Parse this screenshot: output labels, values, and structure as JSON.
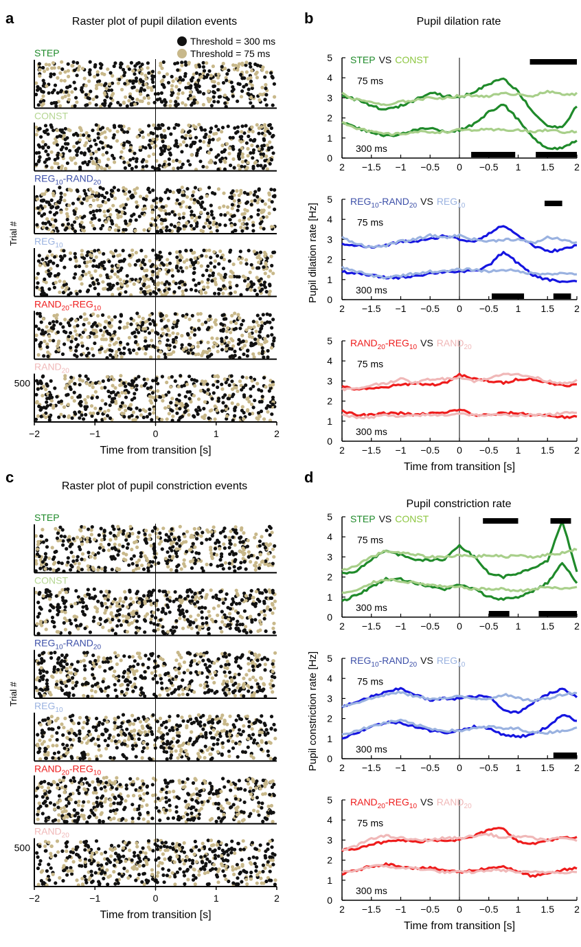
{
  "colors": {
    "step": "#1f8a2a",
    "const": "#a8cf8a",
    "const_label": "#b5d692",
    "vs_const": "#8cc63f",
    "reg_rand": "#1515e0",
    "reg_rand_label": "#3c4fa8",
    "reg10": "#9ab2e0",
    "rand_reg": "#ee1c1c",
    "rand20": "#f0b8b8",
    "black_dot": "#111111",
    "tan_dot": "#c8b88a",
    "bar": "#000000"
  },
  "panels": {
    "a": {
      "letter": "a",
      "title": "Raster plot of pupil dilation events"
    },
    "b": {
      "letter": "b",
      "title": "Pupil dilation rate",
      "ylabel": "Pupil dilation rate [Hz]"
    },
    "c": {
      "letter": "c",
      "title": "Raster plot of pupil constriction events"
    },
    "d": {
      "letter": "d",
      "title": "Pupil constriction rate",
      "ylabel": "Pupil constriction rate [Hz]"
    }
  },
  "legend": {
    "black": "Threshold = 300 ms",
    "tan": "Threshold = 75 ms"
  },
  "raster": {
    "ylabel": "Trial #",
    "trial_tick": "500",
    "xlabel": "Time from transition [s]",
    "xticks": [
      "−2",
      "−1",
      "0",
      "1",
      "2"
    ],
    "conditions": [
      {
        "base": "STEP",
        "sub1": "",
        "mid": "",
        "sub2": "",
        "color_key": "step"
      },
      {
        "base": "CONST",
        "sub1": "",
        "mid": "",
        "sub2": "",
        "color_key": "const_label"
      },
      {
        "base": "REG",
        "sub1": "10",
        "mid": "-RAND",
        "sub2": "20",
        "color_key": "reg_rand_label"
      },
      {
        "base": "REG",
        "sub1": "10",
        "mid": "",
        "sub2": "",
        "color_key": "reg10"
      },
      {
        "base": "RAND",
        "sub1": "20",
        "mid": "-REG",
        "sub2": "10",
        "color_key": "rand_reg"
      },
      {
        "base": "RAND",
        "sub1": "20",
        "mid": "",
        "sub2": "",
        "color_key": "rand20"
      }
    ]
  },
  "rate": {
    "xlabel": "Time from transition [s]",
    "xticks": [
      "2",
      "−1.5",
      "−1",
      "−0.5",
      "0",
      "−0.5",
      "1",
      "1.5",
      "2"
    ],
    "yticks": [
      "0",
      "1",
      "2",
      "3",
      "4",
      "5"
    ],
    "label_75": "75 ms",
    "label_300": "300 ms",
    "vs": "VS",
    "comparisons": [
      {
        "a": {
          "base": "STEP",
          "sub1": "",
          "mid": "",
          "sub2": "",
          "color_key": "step"
        },
        "b": {
          "base": "CONST",
          "sub1": "",
          "mid": "",
          "sub2": "",
          "color_key": "vs_const"
        },
        "ca": "step",
        "cb": "const"
      },
      {
        "a": {
          "base": "REG",
          "sub1": "10",
          "mid": "-RAND",
          "sub2": "20",
          "color_key": "reg_rand_label"
        },
        "b": {
          "base": "REG",
          "sub1": "10",
          "mid": "",
          "sub2": "",
          "color_key": "reg10"
        },
        "ca": "reg_rand",
        "cb": "reg10"
      },
      {
        "a": {
          "base": "RAND",
          "sub1": "20",
          "mid": "-REG",
          "sub2": "10",
          "color_key": "rand_reg"
        },
        "b": {
          "base": "RAND",
          "sub1": "20",
          "mid": "",
          "sub2": "",
          "color_key": "rand20"
        },
        "ca": "rand_reg",
        "cb": "rand20"
      }
    ]
  },
  "chart_data": [
    {
      "panel": "b",
      "type": "line",
      "xlim": [
        -2,
        2
      ],
      "ylim": [
        0,
        5
      ],
      "subplots": [
        {
          "x": [
            -2,
            -1.75,
            -1.5,
            -1.25,
            -1,
            -0.75,
            -0.5,
            -0.25,
            0,
            0.25,
            0.5,
            0.75,
            1,
            1.25,
            1.5,
            1.75,
            2
          ],
          "series": [
            {
              "threshold": "75 ms",
              "group": "a",
              "values": [
                3.1,
                2.9,
                2.6,
                2.4,
                2.6,
                2.9,
                3.3,
                3.1,
                3.0,
                3.3,
                3.7,
                4.0,
                3.3,
                2.3,
                1.6,
                1.5,
                2.6
              ]
            },
            {
              "threshold": "75 ms",
              "group": "b",
              "values": [
                3.2,
                2.9,
                2.8,
                2.6,
                2.8,
                2.9,
                3.0,
                3.0,
                3.1,
                3.1,
                3.1,
                3.2,
                3.2,
                3.1,
                3.3,
                3.2,
                3.2
              ]
            },
            {
              "threshold": "300 ms",
              "group": "a",
              "values": [
                1.8,
                1.5,
                1.3,
                1.1,
                1.2,
                1.4,
                1.5,
                1.3,
                1.4,
                1.7,
                2.3,
                2.7,
                1.9,
                1.0,
                0.5,
                0.5,
                0.9
              ]
            },
            {
              "threshold": "300 ms",
              "group": "b",
              "values": [
                1.8,
                1.5,
                1.3,
                1.2,
                1.2,
                1.3,
                1.3,
                1.3,
                1.4,
                1.4,
                1.4,
                1.4,
                1.4,
                1.3,
                1.4,
                1.3,
                1.3
              ]
            }
          ],
          "bars_top": [
            [
              1.2,
              2.0
            ]
          ],
          "bars_bottom": [
            [
              0.2,
              0.95
            ],
            [
              1.3,
              2.0
            ]
          ]
        },
        {
          "x": [
            -2,
            -1.75,
            -1.5,
            -1.25,
            -1,
            -0.75,
            -0.5,
            -0.25,
            0,
            0.25,
            0.5,
            0.75,
            1,
            1.25,
            1.5,
            1.75,
            2
          ],
          "series": [
            {
              "threshold": "75 ms",
              "group": "a",
              "values": [
                2.8,
                2.7,
                2.6,
                2.7,
                2.9,
                2.9,
                3.0,
                3.2,
                3.0,
                2.9,
                3.3,
                3.7,
                3.2,
                2.7,
                2.4,
                2.5,
                2.7
              ]
            },
            {
              "threshold": "75 ms",
              "group": "b",
              "values": [
                3.1,
                2.8,
                2.6,
                2.7,
                2.9,
                3.0,
                3.2,
                3.1,
                3.2,
                3.0,
                2.9,
                3.0,
                3.0,
                2.8,
                3.1,
                3.0,
                2.8
              ]
            },
            {
              "threshold": "300 ms",
              "group": "a",
              "values": [
                1.4,
                1.3,
                1.2,
                1.1,
                1.1,
                1.2,
                1.3,
                1.4,
                1.4,
                1.4,
                1.7,
                2.4,
                1.8,
                1.2,
                1.0,
                0.9,
                0.9
              ]
            },
            {
              "threshold": "300 ms",
              "group": "b",
              "values": [
                1.6,
                1.4,
                1.2,
                1.1,
                1.2,
                1.3,
                1.4,
                1.4,
                1.5,
                1.5,
                1.4,
                1.5,
                1.4,
                1.3,
                1.3,
                1.3,
                1.3
              ]
            }
          ],
          "bars_top": [
            [
              1.45,
              1.75
            ]
          ],
          "bars_bottom": [
            [
              0.55,
              1.1
            ],
            [
              1.6,
              1.9
            ]
          ]
        },
        {
          "x": [
            -2,
            -1.75,
            -1.5,
            -1.25,
            -1,
            -0.75,
            -0.5,
            -0.25,
            0,
            0.25,
            0.5,
            0.75,
            1,
            1.25,
            1.5,
            1.75,
            2
          ],
          "series": [
            {
              "threshold": "75 ms",
              "group": "a",
              "values": [
                2.7,
                2.6,
                2.6,
                2.7,
                2.8,
                2.9,
                2.8,
                2.9,
                3.3,
                3.1,
                3.0,
                2.9,
                3.1,
                3.1,
                2.9,
                2.8,
                2.8
              ]
            },
            {
              "threshold": "75 ms",
              "group": "b",
              "values": [
                2.6,
                2.6,
                2.8,
                2.9,
                3.1,
                2.9,
                3.1,
                3.1,
                3.2,
                3.0,
                3.1,
                3.4,
                3.3,
                3.2,
                3.0,
                2.9,
                3.0
              ]
            },
            {
              "threshold": "300 ms",
              "group": "a",
              "values": [
                1.5,
                1.3,
                1.3,
                1.4,
                1.4,
                1.3,
                1.4,
                1.4,
                1.6,
                1.3,
                1.3,
                1.4,
                1.4,
                1.3,
                1.3,
                1.2,
                1.2
              ]
            },
            {
              "threshold": "300 ms",
              "group": "b",
              "values": [
                1.3,
                1.2,
                1.2,
                1.3,
                1.2,
                1.3,
                1.3,
                1.3,
                1.4,
                1.3,
                1.3,
                1.3,
                1.3,
                1.3,
                1.3,
                1.4,
                1.4
              ]
            }
          ],
          "bars_top": [],
          "bars_bottom": []
        }
      ]
    },
    {
      "panel": "d",
      "type": "line",
      "xlim": [
        -2,
        2
      ],
      "ylim": [
        0,
        5
      ],
      "subplots": [
        {
          "x": [
            -2,
            -1.75,
            -1.5,
            -1.25,
            -1,
            -0.75,
            -0.5,
            -0.25,
            0,
            0.25,
            0.5,
            0.75,
            1,
            1.25,
            1.5,
            1.75,
            2
          ],
          "series": [
            {
              "threshold": "75 ms",
              "group": "a",
              "values": [
                2.2,
                2.3,
                2.9,
                3.3,
                3.1,
                2.9,
                2.8,
                2.9,
                3.6,
                3.0,
                2.2,
                2.0,
                2.2,
                2.4,
                2.8,
                4.8,
                2.2
              ]
            },
            {
              "threshold": "75 ms",
              "group": "b",
              "values": [
                2.3,
                2.6,
                3.0,
                3.3,
                3.2,
                3.1,
                3.0,
                3.0,
                3.1,
                3.0,
                3.1,
                3.0,
                3.1,
                3.0,
                3.1,
                3.2,
                3.4
              ]
            },
            {
              "threshold": "300 ms",
              "group": "a",
              "values": [
                0.8,
                1.1,
                1.5,
                1.9,
                1.9,
                1.7,
                1.5,
                1.4,
                1.6,
                1.4,
                1.0,
                0.9,
                1.0,
                1.3,
                1.7,
                2.7,
                1.7
              ]
            },
            {
              "threshold": "300 ms",
              "group": "b",
              "values": [
                1.2,
                1.3,
                1.7,
                1.9,
                1.8,
                1.7,
                1.6,
                1.5,
                1.5,
                1.4,
                1.4,
                1.4,
                1.3,
                1.4,
                1.5,
                1.4,
                1.5
              ]
            }
          ],
          "bars_top": [
            [
              0.4,
              1.0
            ],
            [
              1.55,
              1.9
            ]
          ],
          "bars_bottom": [
            [
              0.5,
              0.85
            ],
            [
              1.35,
              2.0
            ]
          ]
        },
        {
          "x": [
            -2,
            -1.75,
            -1.5,
            -1.25,
            -1,
            -0.75,
            -0.5,
            -0.25,
            0,
            0.25,
            0.5,
            0.75,
            1,
            1.25,
            1.5,
            1.75,
            2
          ],
          "series": [
            {
              "threshold": "75 ms",
              "group": "a",
              "values": [
                2.6,
                2.8,
                3.1,
                3.3,
                3.5,
                3.2,
                2.9,
                3.0,
                3.0,
                3.1,
                3.1,
                2.4,
                2.3,
                2.8,
                3.2,
                3.5,
                3.1
              ]
            },
            {
              "threshold": "75 ms",
              "group": "b",
              "values": [
                2.6,
                2.8,
                3.0,
                3.2,
                3.3,
                3.1,
                3.0,
                3.0,
                3.1,
                3.0,
                3.0,
                3.2,
                3.0,
                2.9,
                3.0,
                3.2,
                3.3
              ]
            },
            {
              "threshold": "300 ms",
              "group": "a",
              "values": [
                1.0,
                1.3,
                1.6,
                1.8,
                1.8,
                1.6,
                1.4,
                1.3,
                1.4,
                1.6,
                1.5,
                1.2,
                1.1,
                1.2,
                1.6,
                2.2,
                1.9
              ]
            },
            {
              "threshold": "300 ms",
              "group": "b",
              "values": [
                1.2,
                1.4,
                1.6,
                1.8,
                1.9,
                1.7,
                1.5,
                1.4,
                1.4,
                1.5,
                1.6,
                1.5,
                1.5,
                1.3,
                1.3,
                1.4,
                1.5
              ]
            }
          ],
          "bars_top": [],
          "bars_bottom": [
            [
              1.6,
              2.0
            ]
          ]
        },
        {
          "x": [
            -2,
            -1.75,
            -1.5,
            -1.25,
            -1,
            -0.75,
            -0.5,
            -0.25,
            0,
            0.25,
            0.5,
            0.75,
            1,
            1.25,
            1.5,
            1.75,
            2
          ],
          "series": [
            {
              "threshold": "75 ms",
              "group": "a",
              "values": [
                2.5,
                2.6,
                2.8,
                2.9,
                3.0,
                2.9,
                3.0,
                3.0,
                3.0,
                3.2,
                3.5,
                3.6,
                2.9,
                2.8,
                3.0,
                3.1,
                3.1
              ]
            },
            {
              "threshold": "75 ms",
              "group": "b",
              "values": [
                2.5,
                2.7,
                3.1,
                3.2,
                3.1,
                3.0,
                3.0,
                3.1,
                3.1,
                3.2,
                3.3,
                3.1,
                3.2,
                3.1,
                3.0,
                3.1,
                3.0
              ]
            },
            {
              "threshold": "300 ms",
              "group": "a",
              "values": [
                1.3,
                1.5,
                1.7,
                1.8,
                1.7,
                1.6,
                1.6,
                1.5,
                1.4,
                1.5,
                1.6,
                1.7,
                1.4,
                1.2,
                1.3,
                1.5,
                1.6
              ]
            },
            {
              "threshold": "300 ms",
              "group": "b",
              "values": [
                1.4,
                1.5,
                1.7,
                1.7,
                1.6,
                1.6,
                1.5,
                1.4,
                1.4,
                1.4,
                1.5,
                1.5,
                1.4,
                1.4,
                1.4,
                1.4,
                1.4
              ]
            }
          ],
          "bars_top": [],
          "bars_bottom": []
        }
      ]
    }
  ]
}
